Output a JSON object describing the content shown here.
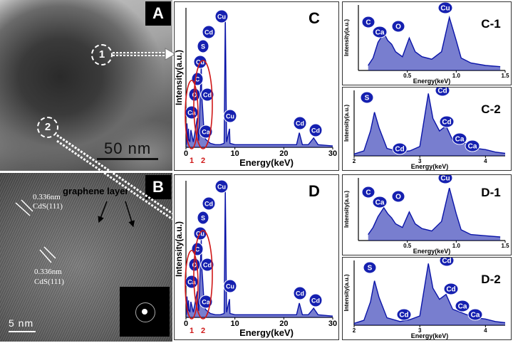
{
  "figure": {
    "panel_a": {
      "letter": "A",
      "point_1": "1",
      "point_2": "2",
      "scale_bar": "50 nm"
    },
    "panel_b": {
      "letter": "B",
      "d_spacing_1": "0.336nm",
      "plane_1": "CdS(111)",
      "d_spacing_2": "0.336nm",
      "plane_2": "CdS(111)",
      "layer_label": "graphene layer",
      "scale_bar": "5 nm"
    }
  },
  "colors": {
    "spectrum": "#0a14a8",
    "peak_badge": "#1520b0",
    "marker": "#d01818",
    "tem_dark": "#3a3a3a"
  },
  "chart_data": [
    {
      "id": "C",
      "type": "line",
      "title": "C",
      "xlabel": "Energy(keV)",
      "ylabel": "Intensity(a.u.)",
      "xlim": [
        0,
        30
      ],
      "xticks": [
        "0",
        "10",
        "20",
        "30"
      ],
      "x": [
        0.1,
        0.2,
        0.28,
        0.35,
        0.45,
        0.52,
        0.6,
        0.8,
        1.0,
        1.5,
        2.31,
        2.6,
        3.13,
        3.2,
        3.4,
        3.69,
        4.0,
        5,
        6,
        7,
        7.8,
        8.04,
        8.3,
        8.9,
        9,
        10,
        15,
        20,
        22.6,
        23.17,
        23.8,
        25,
        26.1,
        27,
        30
      ],
      "y": [
        2,
        18,
        12,
        6,
        5,
        14,
        6,
        4,
        13,
        4,
        22,
        5,
        62,
        40,
        30,
        12,
        6,
        3,
        2,
        2,
        3,
        100,
        4,
        14,
        3,
        2,
        2,
        2,
        2,
        11,
        2,
        2,
        7,
        2,
        1
      ],
      "peak_labels": [
        "Cu",
        "Cd",
        "S",
        "Cu",
        "C",
        "O",
        "Ca",
        "Cd",
        "Ca",
        "Cu",
        "Cd",
        "Cd"
      ],
      "markers": [
        "1",
        "2"
      ]
    },
    {
      "id": "C-1",
      "type": "line",
      "title": "C-1",
      "xlabel": "Energy(keV)",
      "ylabel": "Intensity(a.u.)",
      "xlim": [
        0,
        1.5
      ],
      "xticks": [
        "0.5",
        "1.0",
        "1.5"
      ],
      "x": [
        0.1,
        0.15,
        0.2,
        0.26,
        0.3,
        0.34,
        0.38,
        0.45,
        0.52,
        0.58,
        0.65,
        0.75,
        0.85,
        0.93,
        1.0,
        1.05,
        1.15,
        1.3,
        1.45
      ],
      "y": [
        8,
        20,
        45,
        60,
        48,
        42,
        30,
        22,
        52,
        30,
        22,
        18,
        30,
        85,
        48,
        20,
        12,
        8,
        6
      ],
      "peak_labels": [
        "C",
        "Ca",
        "O",
        "Cu"
      ]
    },
    {
      "id": "C-2",
      "type": "line",
      "title": "C-2",
      "xlabel": "Energy(keV)",
      "ylabel": "Intensity(a.u.)",
      "xlim": [
        2,
        4.3
      ],
      "xticks": [
        "2",
        "3",
        "4"
      ],
      "x": [
        2.0,
        2.15,
        2.25,
        2.31,
        2.38,
        2.5,
        2.7,
        2.85,
        3.0,
        3.13,
        3.2,
        3.3,
        3.4,
        3.5,
        3.69,
        3.85,
        4.0,
        4.15,
        4.3
      ],
      "y": [
        3,
        8,
        40,
        70,
        45,
        12,
        6,
        8,
        15,
        100,
        60,
        40,
        48,
        25,
        20,
        12,
        10,
        6,
        4
      ],
      "peak_labels": [
        "S",
        "Cd",
        "Cd",
        "Cd",
        "Ca",
        "Ca"
      ]
    },
    {
      "id": "D",
      "type": "line",
      "title": "D",
      "xlabel": "Energy(keV)",
      "ylabel": "Intensity(a.u.)",
      "xlim": [
        0,
        30
      ],
      "xticks": [
        "0",
        "10",
        "20",
        "30"
      ],
      "x": [
        0.1,
        0.2,
        0.28,
        0.35,
        0.45,
        0.52,
        0.6,
        0.8,
        1.0,
        1.5,
        2.31,
        2.6,
        3.13,
        3.2,
        3.4,
        3.69,
        4.0,
        5,
        6,
        7,
        7.8,
        8.04,
        8.3,
        8.9,
        9,
        10,
        15,
        20,
        22.6,
        23.17,
        23.8,
        25,
        26.1,
        27,
        30
      ],
      "y": [
        2,
        16,
        12,
        6,
        5,
        13,
        6,
        4,
        12,
        4,
        20,
        5,
        60,
        40,
        30,
        12,
        6,
        3,
        2,
        2,
        3,
        100,
        4,
        14,
        3,
        2,
        2,
        2,
        2,
        11,
        2,
        2,
        7,
        2,
        1
      ],
      "peak_labels": [
        "Cu",
        "Cd",
        "S",
        "Cu",
        "C",
        "O",
        "Ca",
        "Cd",
        "Ca",
        "Cu",
        "Cd",
        "Cd"
      ],
      "markers": [
        "1",
        "2"
      ]
    },
    {
      "id": "D-1",
      "type": "line",
      "title": "D-1",
      "xlabel": "Energy(keV)",
      "ylabel": "Intensity(a.u.)",
      "xlim": [
        0,
        1.5
      ],
      "xticks": [
        "0.5",
        "1.0",
        "1.5"
      ],
      "x": [
        0.1,
        0.15,
        0.2,
        0.26,
        0.3,
        0.34,
        0.38,
        0.45,
        0.52,
        0.58,
        0.65,
        0.75,
        0.85,
        0.93,
        1.0,
        1.05,
        1.15,
        1.3,
        1.45
      ],
      "y": [
        10,
        22,
        40,
        55,
        45,
        38,
        28,
        22,
        48,
        28,
        20,
        16,
        32,
        88,
        45,
        18,
        10,
        8,
        6
      ],
      "peak_labels": [
        "C",
        "Ca",
        "O",
        "Cu"
      ]
    },
    {
      "id": "D-2",
      "type": "line",
      "title": "D-2",
      "xlabel": "Energy(keV)",
      "ylabel": "Intensity(a.u.)",
      "xlim": [
        2,
        4.3
      ],
      "xticks": [
        "2",
        "3",
        "4"
      ],
      "x": [
        2.0,
        2.15,
        2.25,
        2.31,
        2.38,
        2.5,
        2.7,
        2.85,
        3.0,
        3.13,
        3.2,
        3.3,
        3.4,
        3.5,
        3.69,
        3.85,
        4.0,
        4.15,
        4.3
      ],
      "y": [
        3,
        8,
        38,
        72,
        45,
        12,
        6,
        9,
        15,
        100,
        60,
        42,
        50,
        26,
        18,
        12,
        10,
        6,
        4
      ],
      "peak_labels": [
        "S",
        "Cd",
        "Cd",
        "Cd",
        "Ca",
        "Ca"
      ]
    }
  ]
}
